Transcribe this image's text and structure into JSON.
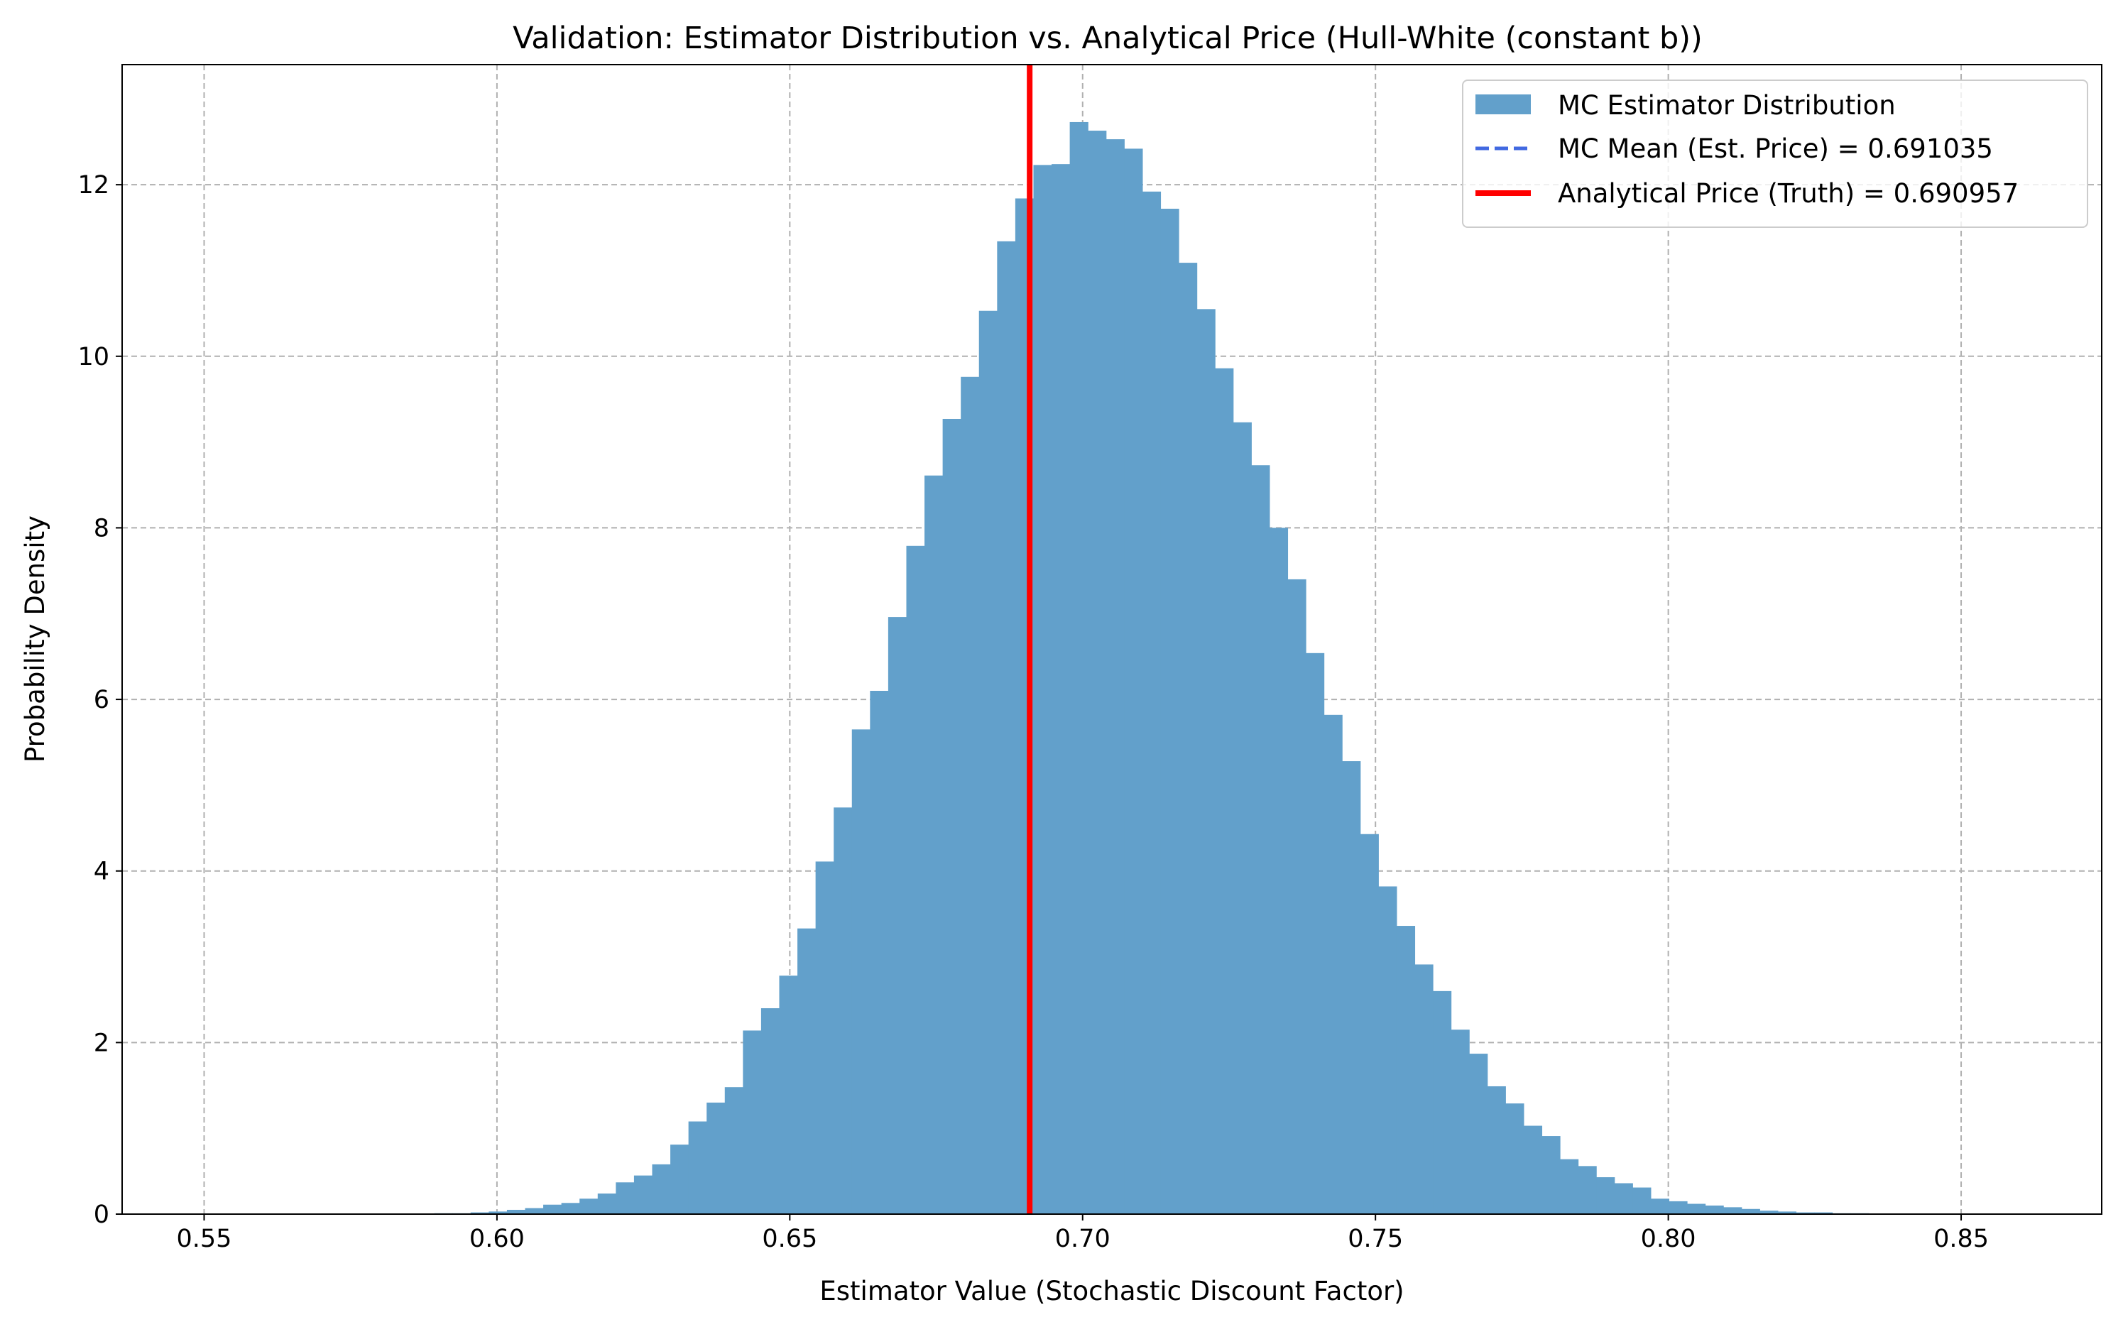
{
  "chart_data": {
    "type": "histogram",
    "title": "Validation: Estimator Distribution vs. Analytical Price (Hull-White (constant b))",
    "xlabel": "Estimator Value (Stochastic Discount Factor)",
    "ylabel": "Probability Density",
    "xlim": [
      0.536,
      0.874
    ],
    "ylim": [
      0,
      13.4
    ],
    "x_ticks": [
      0.55,
      0.6,
      0.65,
      0.7,
      0.75,
      0.8,
      0.85
    ],
    "x_tick_labels": [
      "0.55",
      "0.60",
      "0.65",
      "0.70",
      "0.75",
      "0.80",
      "0.85"
    ],
    "y_ticks": [
      0,
      2,
      4,
      6,
      8,
      10,
      12
    ],
    "y_tick_labels": [
      "0",
      "2",
      "4",
      "6",
      "8",
      "10",
      "12"
    ],
    "grid": true,
    "legend_position": "top-right",
    "bin_start": 0.549,
    "bin_width": 0.0031,
    "densities": [
      0,
      0,
      0,
      0,
      0,
      0,
      0,
      0,
      0,
      0,
      0,
      0,
      0,
      0.01,
      0.01,
      0.02,
      0.03,
      0.05,
      0.07,
      0.11,
      0.13,
      0.18,
      0.24,
      0.37,
      0.45,
      0.58,
      0.81,
      1.08,
      1.3,
      1.48,
      2.14,
      2.4,
      2.78,
      3.33,
      4.11,
      4.74,
      5.65,
      6.1,
      6.96,
      7.79,
      8.61,
      9.27,
      9.76,
      10.53,
      11.34,
      11.84,
      12.23,
      12.24,
      12.73,
      12.63,
      12.53,
      12.42,
      11.92,
      11.72,
      11.09,
      10.55,
      9.86,
      9.23,
      8.73,
      8.0,
      7.4,
      6.54,
      5.82,
      5.28,
      4.43,
      3.82,
      3.36,
      2.91,
      2.6,
      2.15,
      1.87,
      1.49,
      1.29,
      1.03,
      0.91,
      0.64,
      0.56,
      0.43,
      0.36,
      0.31,
      0.18,
      0.15,
      0.12,
      0.1,
      0.08,
      0.06,
      0.04,
      0.03,
      0.02,
      0.02,
      0.01,
      0.01,
      0,
      0,
      0,
      0,
      0,
      0,
      0,
      0,
      0,
      0,
      0,
      0,
      0,
      0,
      0,
      0,
      0,
      0.01
    ],
    "bar_color": "#62a0cb",
    "mc_mean": 0.691035,
    "mc_mean_color": "#4169e1",
    "analytical_price": 0.690957,
    "analytical_color": "#ff0000",
    "legend": [
      "MC Estimator Distribution",
      "MC Mean (Est. Price) = 0.691035",
      "Analytical Price (Truth) = 0.690957"
    ]
  }
}
